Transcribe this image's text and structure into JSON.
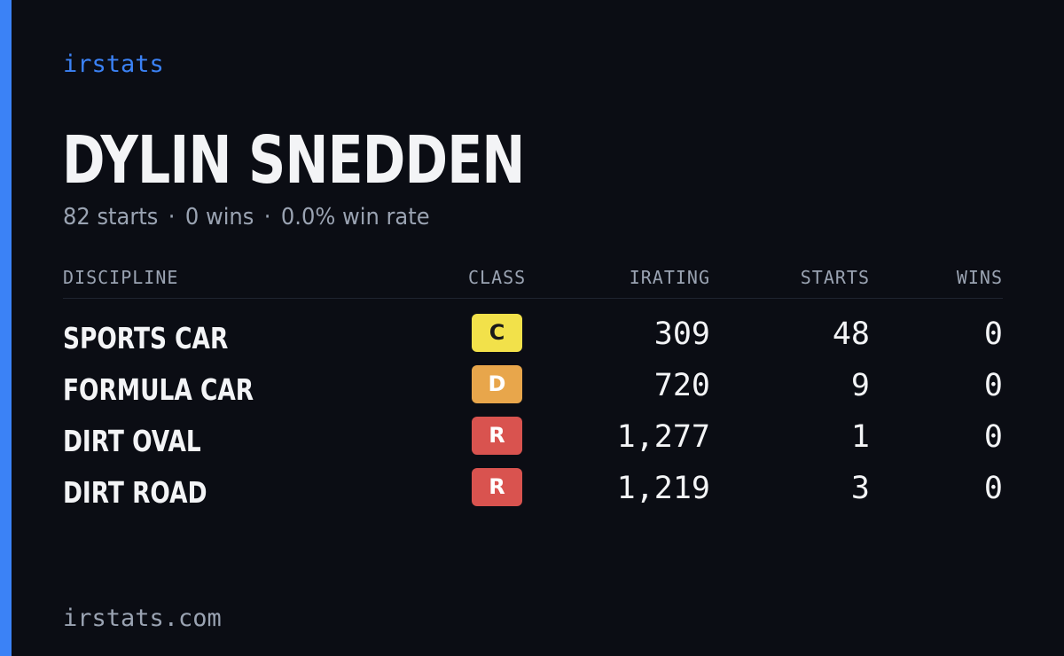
{
  "brand": "irstats",
  "player": {
    "name": "DYLIN SNEDDEN",
    "starts_text": "82 starts",
    "wins_text": "0 wins",
    "win_rate_text": "0.0% win rate",
    "separator": "·"
  },
  "table": {
    "headers": {
      "discipline": "DISCIPLINE",
      "class": "CLASS",
      "irating": "IRATING",
      "starts": "STARTS",
      "wins": "WINS"
    },
    "rows": [
      {
        "discipline": "SPORTS CAR",
        "class": "C",
        "class_color": "#f2e14a",
        "class_text_color": "#1a1a1a",
        "irating": "309",
        "starts": "48",
        "wins": "0"
      },
      {
        "discipline": "FORMULA CAR",
        "class": "D",
        "class_color": "#e8a64b",
        "class_text_color": "#ffffff",
        "irating": "720",
        "starts": "9",
        "wins": "0"
      },
      {
        "discipline": "DIRT OVAL",
        "class": "R",
        "class_color": "#d9534f",
        "class_text_color": "#ffffff",
        "irating": "1,277",
        "starts": "1",
        "wins": "0"
      },
      {
        "discipline": "DIRT ROAD",
        "class": "R",
        "class_color": "#d9534f",
        "class_text_color": "#ffffff",
        "irating": "1,219",
        "starts": "3",
        "wins": "0"
      }
    ]
  },
  "footer": {
    "url": "irstats.com"
  },
  "colors": {
    "background": "#0b0d14",
    "accent": "#3b82f6",
    "text_primary": "#f3f4f6",
    "text_muted": "#9aa3b2"
  }
}
